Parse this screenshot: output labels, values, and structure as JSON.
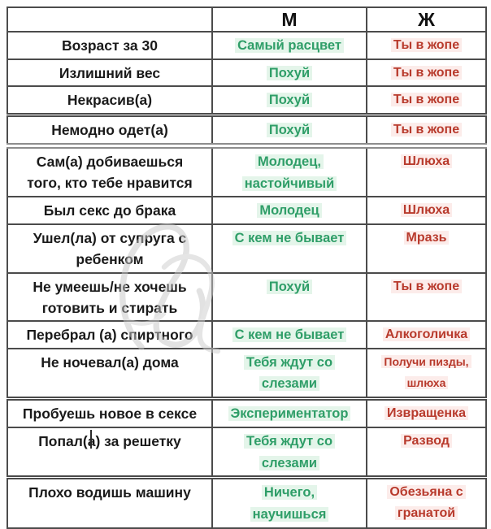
{
  "table": {
    "header": {
      "situation": "",
      "male": "М",
      "female": "Ж"
    },
    "rows": [
      {
        "situation": "Возраст за 30",
        "male": "Самый расцвет",
        "female": "Ты в жопе"
      },
      {
        "situation": "Излишний вес",
        "male": "Похуй",
        "female": "Ты в жопе"
      },
      {
        "situation": "Некрасив(а)",
        "male": "Похуй",
        "female": "Ты в жопе"
      },
      {
        "situation": "Немодно одет(а)",
        "male": "Похуй",
        "female": "Ты в жопе"
      },
      {
        "situation": "Сам(а) добиваешься\nтого, кто тебе нравится",
        "male": "Молодец,\nнастойчивый",
        "female": "Шлюха"
      },
      {
        "situation": "Был секс до брака",
        "male": "Молодец",
        "female": "Шлюха"
      },
      {
        "situation": "Ушел(ла) от супруга с\nребенком",
        "male": "С кем не бывает",
        "female": "Мразь"
      },
      {
        "situation": "Не умеешь/не хочешь\nготовить и стирать",
        "male": "Похуй",
        "female": "Ты в жопе"
      },
      {
        "situation": "Перебрал (а) спиртного",
        "male": "С кем не бывает",
        "female": "Алкоголичка"
      },
      {
        "situation": "Не ночевал(а) дома",
        "male": "Тебя ждут со\nслезами",
        "female": "Получи пизды,\nшлюха"
      },
      {
        "situation": "Пробуешь новое в сексе",
        "male": "Экспериментатор",
        "female": "Извращенка"
      },
      {
        "situation": "Попал(а) за решетку",
        "male": "Тебя ждут со\nслезами",
        "female": "Развод"
      },
      {
        "situation": "Плохо водишь машину",
        "male": "Ничего,\nнаучишься",
        "female": "Обезьяна с\nгранатой"
      }
    ]
  },
  "colors": {
    "border": "#4b4b4b",
    "border_light": "#8d8d8d",
    "label_text": "#1a1a1a",
    "male_text": "#2f9e68",
    "male_highlight": "#e4f5ea",
    "female_text": "#b83a2c",
    "female_highlight": "#fcecea"
  }
}
